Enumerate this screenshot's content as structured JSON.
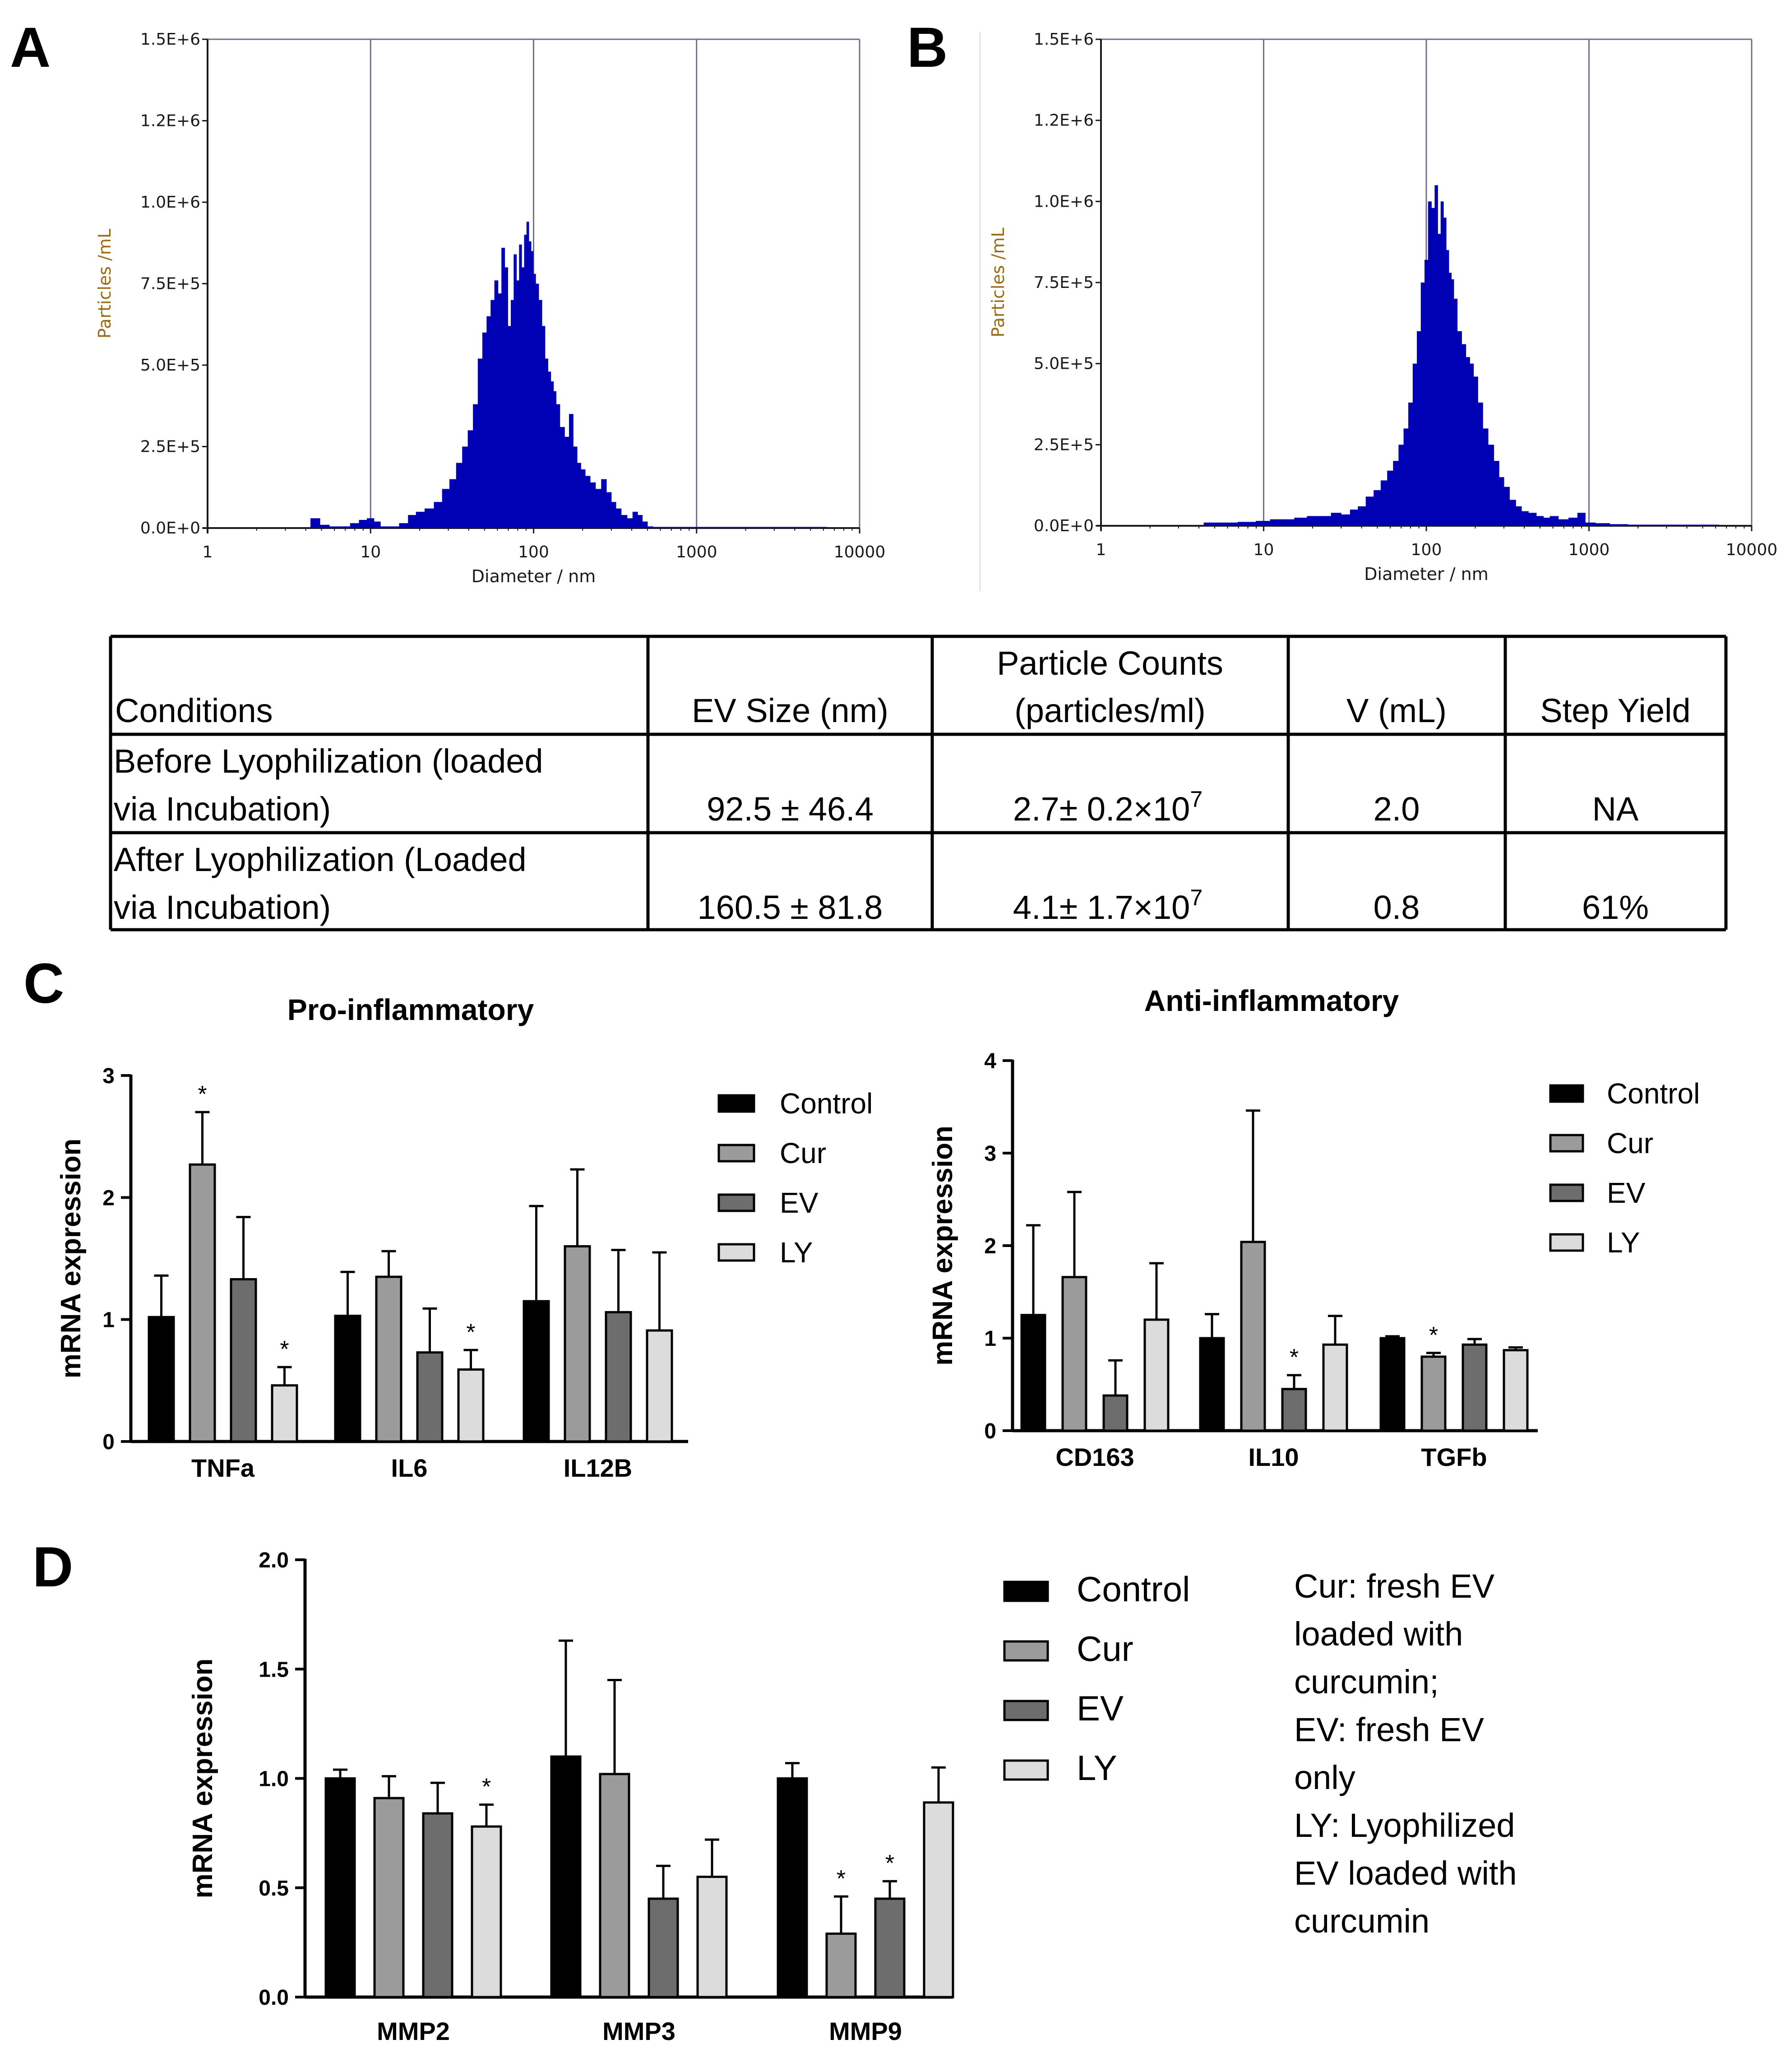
{
  "panels": {
    "A": "A",
    "B": "B",
    "C": "C",
    "D": "D"
  },
  "colors": {
    "histogram": "#0000b4",
    "grid": "#6f6f8a",
    "ylabel_nta": "#9a6b16",
    "Control": "#000000",
    "Cur": "#9b9b9b",
    "EV": "#6d6d6d",
    "LY": "#dcdcdc"
  },
  "chart_data": [
    {
      "id": "A",
      "type": "area",
      "title": "",
      "xlabel": "Diameter / nm",
      "ylabel": "Particles /mL",
      "xscale": "log",
      "xlim": [
        1,
        10000
      ],
      "ylim": [
        0,
        1500000
      ],
      "xticks": [
        "1",
        "10",
        "100",
        "1000",
        "10000"
      ],
      "yticks": [
        "0.0E+0",
        "2.5E+5",
        "5.0E+5",
        "7.5E+5",
        "1.0E+6",
        "1.2E+6",
        "1.5E+6"
      ],
      "x": [
        4.6,
        5.2,
        6.0,
        7,
        8,
        9,
        10,
        11,
        12,
        14,
        16,
        18,
        20,
        23,
        26,
        29,
        32,
        35,
        38,
        41,
        44,
        47,
        50,
        53,
        56,
        59,
        62,
        65,
        68,
        71,
        74,
        77,
        80,
        83,
        86,
        89,
        92,
        95,
        98,
        101,
        105,
        110,
        115,
        120,
        125,
        130,
        135,
        140,
        150,
        160,
        170,
        180,
        190,
        200,
        215,
        230,
        250,
        270,
        290,
        310,
        330,
        360,
        390,
        420,
        450,
        480,
        520,
        560,
        650,
        800,
        1000,
        1500,
        2000,
        3000,
        4000,
        5000,
        6000
      ],
      "y": [
        30000,
        10000,
        5000,
        5000,
        15000,
        25000,
        30000,
        20000,
        5000,
        5000,
        15000,
        40000,
        50000,
        60000,
        80000,
        120000,
        150000,
        200000,
        250000,
        300000,
        380000,
        520000,
        600000,
        650000,
        700000,
        760000,
        720000,
        860000,
        800000,
        620000,
        700000,
        840000,
        760000,
        870000,
        800000,
        900000,
        940000,
        880000,
        850000,
        780000,
        750000,
        700000,
        620000,
        520000,
        480000,
        450000,
        420000,
        380000,
        310000,
        280000,
        350000,
        250000,
        200000,
        180000,
        160000,
        140000,
        120000,
        150000,
        110000,
        80000,
        60000,
        40000,
        30000,
        50000,
        40000,
        20000,
        5000,
        2000,
        1000,
        500,
        500,
        0,
        0,
        0,
        0,
        0,
        0
      ]
    },
    {
      "id": "B",
      "type": "area",
      "title": "",
      "xlabel": "Diameter / nm",
      "ylabel": "Particles /mL",
      "xscale": "log",
      "xlim": [
        1,
        10000
      ],
      "ylim": [
        0,
        1500000
      ],
      "xticks": [
        "1",
        "10",
        "100",
        "1000",
        "10000"
      ],
      "yticks": [
        "0.0E+0",
        "2.5E+5",
        "5.0E+5",
        "7.5E+5",
        "1.0E+6",
        "1.2E+6",
        "1.5E+6"
      ],
      "x": [
        4.6,
        6,
        8,
        10,
        12,
        14,
        17,
        20,
        24,
        28,
        32,
        36,
        40,
        45,
        50,
        55,
        60,
        65,
        70,
        75,
        80,
        85,
        90,
        95,
        100,
        105,
        110,
        115,
        120,
        125,
        130,
        135,
        140,
        145,
        150,
        160,
        170,
        180,
        190,
        200,
        215,
        230,
        250,
        270,
        290,
        310,
        340,
        370,
        400,
        450,
        500,
        550,
        600,
        700,
        800,
        900,
        1000,
        1200,
        1500,
        2000,
        3000,
        5000,
        6000
      ],
      "y": [
        10000,
        10000,
        12000,
        15000,
        20000,
        20000,
        25000,
        30000,
        30000,
        40000,
        35000,
        50000,
        60000,
        90000,
        110000,
        140000,
        170000,
        200000,
        250000,
        300000,
        380000,
        500000,
        600000,
        750000,
        820000,
        1000000,
        980000,
        1050000,
        900000,
        1000000,
        950000,
        850000,
        780000,
        760000,
        700000,
        600000,
        560000,
        520000,
        500000,
        460000,
        380000,
        300000,
        250000,
        200000,
        150000,
        120000,
        80000,
        60000,
        45000,
        40000,
        30000,
        25000,
        30000,
        20000,
        25000,
        40000,
        10000,
        8000,
        5000,
        2000,
        1000,
        500,
        0
      ]
    },
    {
      "id": "C-pro",
      "type": "bar",
      "title": "Pro-inflammatory",
      "xlabel": "",
      "ylabel": "mRNA expression",
      "ylim": [
        0,
        3
      ],
      "yticks": [
        "0",
        "1",
        "2",
        "3"
      ],
      "categories": [
        "TNFa",
        "IL6",
        "IL12B"
      ],
      "series": [
        {
          "name": "Control",
          "values": [
            1.02,
            1.03,
            1.15
          ],
          "errors": [
            0.34,
            0.36,
            0.78
          ],
          "sig": [
            "",
            "",
            ""
          ]
        },
        {
          "name": "Cur",
          "values": [
            2.27,
            1.35,
            1.6
          ],
          "errors": [
            0.43,
            0.21,
            0.63
          ],
          "sig": [
            "*",
            "",
            ""
          ]
        },
        {
          "name": "EV",
          "values": [
            1.33,
            0.73,
            1.06
          ],
          "errors": [
            0.51,
            0.36,
            0.51
          ],
          "sig": [
            "",
            "",
            ""
          ]
        },
        {
          "name": "LY",
          "values": [
            0.46,
            0.59,
            0.91
          ],
          "errors": [
            0.15,
            0.16,
            0.64
          ],
          "sig": [
            "*",
            "*",
            ""
          ]
        }
      ]
    },
    {
      "id": "C-anti",
      "type": "bar",
      "title": "Anti-inflammatory",
      "xlabel": "",
      "ylabel": "mRNA expression",
      "ylim": [
        0,
        4
      ],
      "yticks": [
        "0",
        "1",
        "2",
        "3",
        "4"
      ],
      "categories": [
        "CD163",
        "IL10",
        "TGFb"
      ],
      "series": [
        {
          "name": "Control",
          "values": [
            1.25,
            1.0,
            1.0
          ],
          "errors": [
            0.97,
            0.26,
            0.02
          ],
          "sig": [
            "",
            "",
            ""
          ]
        },
        {
          "name": "Cur",
          "values": [
            1.66,
            2.04,
            0.8
          ],
          "errors": [
            0.92,
            1.42,
            0.04
          ],
          "sig": [
            "",
            "",
            "*"
          ]
        },
        {
          "name": "EV",
          "values": [
            0.38,
            0.45,
            0.93
          ],
          "errors": [
            0.38,
            0.15,
            0.06
          ],
          "sig": [
            "",
            "*",
            ""
          ]
        },
        {
          "name": "LY",
          "values": [
            1.2,
            0.93,
            0.87
          ],
          "errors": [
            0.61,
            0.31,
            0.03
          ],
          "sig": [
            "",
            "",
            ""
          ]
        }
      ]
    },
    {
      "id": "D",
      "type": "bar",
      "title": "",
      "xlabel": "",
      "ylabel": "mRNA expression",
      "ylim": [
        0,
        2.0
      ],
      "yticks": [
        "0.0",
        "0.5",
        "1.0",
        "1.5",
        "2.0"
      ],
      "categories": [
        "MMP2",
        "MMP3",
        "MMP9"
      ],
      "series": [
        {
          "name": "Control",
          "values": [
            1.0,
            1.1,
            1.0
          ],
          "errors": [
            0.04,
            0.53,
            0.07
          ],
          "sig": [
            "",
            "",
            ""
          ]
        },
        {
          "name": "Cur",
          "values": [
            0.91,
            1.02,
            0.29
          ],
          "errors": [
            0.1,
            0.43,
            0.17
          ],
          "sig": [
            "",
            "",
            "*"
          ]
        },
        {
          "name": "EV",
          "values": [
            0.84,
            0.45,
            0.45
          ],
          "errors": [
            0.14,
            0.15,
            0.08
          ],
          "sig": [
            "",
            "",
            "*"
          ]
        },
        {
          "name": "LY",
          "values": [
            0.78,
            0.55,
            0.89
          ],
          "errors": [
            0.1,
            0.17,
            0.16
          ],
          "sig": [
            "*",
            "",
            ""
          ]
        }
      ]
    }
  ],
  "table": {
    "headers": [
      "Conditions",
      "EV Size (nm)",
      "Particle Counts (particles/ml)",
      "V (mL)",
      "Step Yield"
    ],
    "rows": [
      {
        "conditions": "Before Lyophilization (loaded via Incubation)",
        "size": "92.5 ± 46.4",
        "count_base": "2.7± 0.2×10",
        "count_exp": "7",
        "volume": "2.0",
        "yield": "NA"
      },
      {
        "conditions": "After Lyophilization (Loaded via Incubation)",
        "size": "160.5 ± 81.8",
        "count_base": "4.1± 1.7×10",
        "count_exp": "7",
        "volume": "0.8",
        "yield": "61%"
      }
    ]
  },
  "legend": [
    "Control",
    "Cur",
    "EV",
    "LY"
  ],
  "note": [
    "Cur: fresh EV",
    "loaded with",
    "curcumin;",
    "EV: fresh EV",
    "only",
    "LY: Lyophilized",
    "EV loaded with",
    "curcumin"
  ]
}
